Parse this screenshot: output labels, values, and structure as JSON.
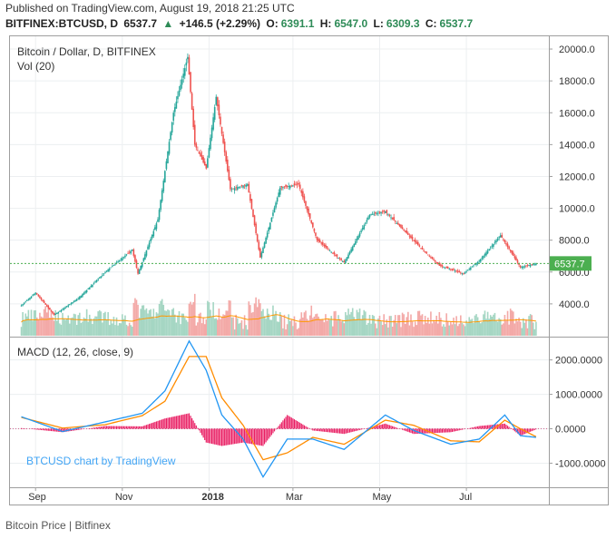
{
  "header": {
    "published": "Published on TradingView.com, August 19, 2018 21:25 UTC",
    "symbol": "BITFINEX:BTCUSD, D",
    "last": "6537.7",
    "change_arrow": "▲",
    "change": "+146.5 (+2.29%)",
    "o_label": "O:",
    "o_value": "6391.1",
    "h_label": "H:",
    "h_value": "6547.0",
    "l_label": "L:",
    "l_value": "6309.3",
    "c_label": "C:",
    "c_value": "6537.7"
  },
  "caption": "Bitcoin Price | Bitfinex",
  "colors": {
    "up": "#26a69a",
    "down": "#ef5350",
    "macd": "#2196f3",
    "signal": "#ff8c00",
    "hist": "#e91e63",
    "last_price": "#4caf50"
  },
  "chart_data": [
    {
      "type": "candlestick",
      "title": "Bitcoin / Dollar, D, BITFINEX",
      "subtitle": "Vol (20)",
      "y_ticks": [
        "20000.0",
        "18000.0",
        "16000.0",
        "14000.0",
        "12000.0",
        "10000.0",
        "8000.0",
        "6000.0",
        "4000.0"
      ],
      "ylim": [
        2000,
        20800
      ],
      "x_ticks": [
        "Sep",
        "Nov",
        "2018",
        "Mar",
        "May",
        "Jul"
      ],
      "last_price_label": "6537.7",
      "last_price": 6537.7,
      "series_close": [
        {
          "date": "2017-08-22",
          "close": 3900
        },
        {
          "date": "2017-09-01",
          "close": 4700
        },
        {
          "date": "2017-09-14",
          "close": 3300
        },
        {
          "date": "2017-10-01",
          "close": 4350
        },
        {
          "date": "2017-10-20",
          "close": 6000
        },
        {
          "date": "2017-11-08",
          "close": 7400
        },
        {
          "date": "2017-11-12",
          "close": 5900
        },
        {
          "date": "2017-11-26",
          "close": 9300
        },
        {
          "date": "2017-12-07",
          "close": 16000
        },
        {
          "date": "2017-12-17",
          "close": 19500
        },
        {
          "date": "2017-12-22",
          "close": 14000
        },
        {
          "date": "2017-12-30",
          "close": 12500
        },
        {
          "date": "2018-01-06",
          "close": 17000
        },
        {
          "date": "2018-01-16",
          "close": 11200
        },
        {
          "date": "2018-01-28",
          "close": 11500
        },
        {
          "date": "2018-02-06",
          "close": 6900
        },
        {
          "date": "2018-02-20",
          "close": 11300
        },
        {
          "date": "2018-03-05",
          "close": 11500
        },
        {
          "date": "2018-03-18",
          "close": 8000
        },
        {
          "date": "2018-04-06",
          "close": 6600
        },
        {
          "date": "2018-04-24",
          "close": 9600
        },
        {
          "date": "2018-05-05",
          "close": 9800
        },
        {
          "date": "2018-05-30",
          "close": 7500
        },
        {
          "date": "2018-06-12",
          "close": 6400
        },
        {
          "date": "2018-06-29",
          "close": 5900
        },
        {
          "date": "2018-07-10",
          "close": 6700
        },
        {
          "date": "2018-07-25",
          "close": 8300
        },
        {
          "date": "2018-08-08",
          "close": 6300
        },
        {
          "date": "2018-08-19",
          "close": 6537.7
        }
      ]
    },
    {
      "type": "line",
      "title": "MACD (12, 26, close, 9)",
      "y_ticks": [
        "2000.0000",
        "1000.0000",
        "0.0000",
        "-1000.0000"
      ],
      "ylim": [
        -1700,
        2650
      ],
      "series": [
        {
          "values_by_date": [
            {
              "date": "2017-08-22",
              "macd": 350,
              "signal": 330
            },
            {
              "date": "2017-09-20",
              "macd": -80,
              "signal": 20
            },
            {
              "date": "2017-10-20",
              "macd": 200,
              "signal": 120
            },
            {
              "date": "2017-11-15",
              "macd": 450,
              "signal": 380
            },
            {
              "date": "2017-12-01",
              "macd": 1100,
              "signal": 800
            },
            {
              "date": "2017-12-18",
              "macd": 2550,
              "signal": 2100
            },
            {
              "date": "2017-12-30",
              "macd": 1700,
              "signal": 2100
            },
            {
              "date": "2018-01-10",
              "macd": 400,
              "signal": 900
            },
            {
              "date": "2018-01-25",
              "macd": -300,
              "signal": 100
            },
            {
              "date": "2018-02-08",
              "macd": -1400,
              "signal": -900
            },
            {
              "date": "2018-02-25",
              "macd": -300,
              "signal": -700
            },
            {
              "date": "2018-03-15",
              "macd": -300,
              "signal": -250
            },
            {
              "date": "2018-04-06",
              "macd": -600,
              "signal": -450
            },
            {
              "date": "2018-05-05",
              "macd": 400,
              "signal": 250
            },
            {
              "date": "2018-05-25",
              "macd": -50,
              "signal": 100
            },
            {
              "date": "2018-06-20",
              "macd": -450,
              "signal": -350
            },
            {
              "date": "2018-07-10",
              "macd": -300,
              "signal": -380
            },
            {
              "date": "2018-07-28",
              "macd": 400,
              "signal": 250
            },
            {
              "date": "2018-08-08",
              "macd": -200,
              "signal": 0
            },
            {
              "date": "2018-08-19",
              "macd": -250,
              "signal": -230
            }
          ]
        }
      ],
      "watermark": "BTCUSD chart by TradingView"
    }
  ]
}
